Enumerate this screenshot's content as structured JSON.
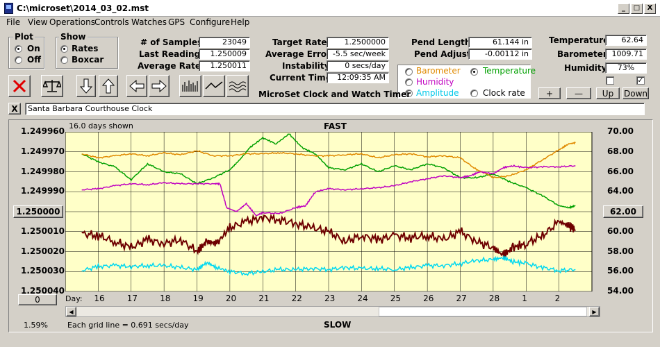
{
  "window": {
    "title": "C:\\microset\\2014_03_02.mst",
    "min_label": "_",
    "max_label": "□",
    "close_label": "X"
  },
  "menu": [
    "File",
    "View",
    "Operations",
    "Controls",
    "Watches",
    "GPS",
    "Configure",
    "Help"
  ],
  "plot_group": {
    "title": "Plot",
    "on": "On",
    "off": "Off",
    "selected": "On"
  },
  "show_group": {
    "title": "Show",
    "rates": "Rates",
    "boxcar": "Boxcar",
    "selected": "Rates"
  },
  "stats": {
    "samples_label": "# of Samples:",
    "samples": "23049",
    "last_reading_label": "Last Reading:",
    "last_reading": "1.250009",
    "avg_rate_label": "Average Rate:",
    "avg_rate": "1.250011",
    "target_rate_label": "Target Rate:",
    "target_rate": "1.2500000",
    "avg_error_label": "Average Error:",
    "avg_error": "-5.5 sec/week",
    "instability_label": "Instability:",
    "instability": "0 secs/day",
    "current_time_label": "Current Time:",
    "current_time": "12:09:35 AM",
    "pend_length_label": "Pend Length:",
    "pend_length": "61.144 in",
    "pend_adjust_label": "Pend Adjust:",
    "pend_adjust": "-0.00112 in",
    "temperature_label": "Temperature:",
    "temperature": "62.64",
    "barometer_label": "Barometer:",
    "barometer": "1009.71",
    "humidity_label": "Humidity:",
    "humidity": "73%"
  },
  "app_caption": "MicroSet Clock and Watch Timer",
  "sensor_group": {
    "barometer": "Barometer",
    "temperature": "Temperature",
    "humidity": "Humidity",
    "amplitude": "Amplitude",
    "clock_rate": "Clock rate",
    "selected": "Temperature",
    "colors": {
      "barometer": "#e08a00",
      "temperature": "#00a000",
      "humidity": "#c000c0",
      "amplitude": "#00c8e8",
      "clock_rate": "#000000"
    }
  },
  "right_buttons": {
    "plus": "+",
    "minus": "—",
    "up": "Up",
    "down": "Down"
  },
  "checkboxes": {
    "left_checked": false,
    "right_checked": true,
    "check_mark": "✓"
  },
  "clock_bar": {
    "close": "X",
    "name": "Santa Barbara Courthouse Clock"
  },
  "chart_header": {
    "days_shown": "16.0 days shown",
    "fast": "FAST",
    "slow": "SLOW",
    "grid_note": "Each grid line = 0.691 secs/day",
    "percent": "1.59%",
    "day_label": "Day:"
  },
  "left_axis_button": "1.250000",
  "right_axis_button": "62.00",
  "zero_button": "0",
  "chart_data": {
    "type": "line",
    "x_label": "Day:",
    "x_ticks": [
      "16",
      "17",
      "18",
      "19",
      "20",
      "21",
      "22",
      "23",
      "24",
      "25",
      "26",
      "27",
      "28",
      "1",
      "2"
    ],
    "y_left_ticks": [
      "1.249960",
      "1.249970",
      "1.249980",
      "1.249990",
      "1.250000",
      "1.250010",
      "1.250020",
      "1.250030",
      "1.250040"
    ],
    "y_left_range": [
      1.24996,
      1.25004
    ],
    "y_right_ticks": [
      "70.00",
      "68.00",
      "66.00",
      "64.00",
      "62.00",
      "60.00",
      "58.00",
      "56.00",
      "54.00"
    ],
    "y_right_range": [
      54,
      70
    ],
    "background": "#ffffc8",
    "series": [
      {
        "name": "Temperature",
        "color": "#00a000",
        "axis": "right",
        "x": [
          15.5,
          16.0,
          16.5,
          17.0,
          17.5,
          18.0,
          18.5,
          19.0,
          19.5,
          20.0,
          20.3,
          20.6,
          21.0,
          21.4,
          21.8,
          22.2,
          22.6,
          23.0,
          23.5,
          24.0,
          24.5,
          25.0,
          25.5,
          26.0,
          26.5,
          27.0,
          27.5,
          28.0,
          28.5,
          29.0,
          29.5,
          30.0,
          30.3,
          30.5
        ],
        "y": [
          67.8,
          67.0,
          66.5,
          65.2,
          66.8,
          66.0,
          65.8,
          64.8,
          65.4,
          66.2,
          67.2,
          68.4,
          69.4,
          68.8,
          69.8,
          68.4,
          67.8,
          66.4,
          66.2,
          66.8,
          66.0,
          66.6,
          66.2,
          66.8,
          66.4,
          65.4,
          65.4,
          65.8,
          65.0,
          64.4,
          63.6,
          62.6,
          62.4,
          62.6
        ]
      },
      {
        "name": "Barometer",
        "color": "#e08a00",
        "axis": "right",
        "x": [
          15.5,
          16.0,
          16.5,
          17.0,
          17.5,
          18.0,
          18.5,
          19.0,
          19.5,
          20.0,
          20.5,
          21.0,
          21.5,
          22.0,
          22.5,
          23.0,
          23.5,
          24.0,
          24.5,
          25.0,
          25.5,
          26.0,
          26.5,
          27.0,
          27.5,
          27.8,
          28.0,
          28.5,
          29.0,
          29.5,
          30.0,
          30.3,
          30.5
        ],
        "y": [
          67.8,
          67.4,
          67.6,
          67.8,
          67.6,
          67.9,
          67.7,
          68.1,
          67.6,
          67.6,
          67.8,
          67.8,
          67.9,
          67.8,
          67.6,
          67.6,
          67.7,
          67.8,
          67.4,
          67.7,
          67.8,
          67.5,
          67.6,
          67.4,
          66.2,
          65.8,
          65.4,
          65.6,
          66.2,
          67.2,
          68.2,
          68.8,
          68.9
        ]
      },
      {
        "name": "Humidity",
        "color": "#c000c0",
        "axis": "right",
        "x": [
          15.5,
          16.0,
          16.5,
          17.0,
          17.5,
          18.0,
          18.5,
          19.0,
          19.5,
          19.7,
          19.9,
          20.2,
          20.5,
          20.8,
          21.0,
          21.5,
          22.0,
          22.3,
          22.6,
          23.0,
          23.5,
          24.0,
          24.5,
          25.0,
          25.5,
          26.0,
          26.5,
          27.0,
          27.3,
          27.6,
          28.0,
          28.3,
          28.6,
          29.0,
          29.5,
          30.0,
          30.5
        ],
        "y": [
          64.2,
          64.3,
          64.6,
          64.8,
          64.7,
          64.9,
          64.8,
          64.8,
          64.8,
          64.8,
          62.4,
          62.0,
          62.8,
          61.6,
          61.9,
          61.8,
          62.4,
          62.6,
          64.0,
          64.3,
          64.2,
          64.3,
          64.4,
          64.6,
          65.0,
          65.3,
          65.6,
          65.4,
          65.6,
          66.0,
          65.8,
          66.4,
          66.6,
          66.4,
          66.5,
          66.5,
          66.6
        ]
      },
      {
        "name": "Clock rate",
        "color": "#6e0000",
        "axis": "left",
        "x": [
          15.5,
          16.0,
          16.5,
          17.0,
          17.5,
          18.0,
          18.5,
          19.0,
          19.3,
          19.6,
          20.0,
          20.5,
          21.0,
          21.5,
          22.0,
          22.5,
          23.0,
          23.5,
          24.0,
          24.5,
          25.0,
          25.5,
          26.0,
          26.5,
          27.0,
          27.5,
          28.0,
          28.3,
          28.6,
          29.0,
          29.5,
          30.0,
          30.3,
          30.5
        ],
        "y": [
          1.250011,
          1.250012,
          1.250015,
          1.250018,
          1.250014,
          1.250016,
          1.250014,
          1.25002,
          1.250015,
          1.250016,
          1.250008,
          1.250005,
          1.250003,
          1.250004,
          1.250006,
          1.250008,
          1.25001,
          1.250015,
          1.250012,
          1.250014,
          1.250012,
          1.250013,
          1.250012,
          1.250014,
          1.25001,
          1.250015,
          1.250018,
          1.250022,
          1.250018,
          1.250016,
          1.250012,
          1.250005,
          1.250007,
          1.250009
        ]
      },
      {
        "name": "Amplitude",
        "color": "#00d8f0",
        "axis": "right",
        "x": [
          15.5,
          16.0,
          16.5,
          17.0,
          17.5,
          18.0,
          18.5,
          19.0,
          19.3,
          19.6,
          20.0,
          20.5,
          21.0,
          21.5,
          22.0,
          22.5,
          23.0,
          23.5,
          24.0,
          24.5,
          25.0,
          25.5,
          26.0,
          26.5,
          27.0,
          27.5,
          28.0,
          28.3,
          28.6,
          29.0,
          29.5,
          30.0,
          30.5
        ],
        "y": [
          56.1,
          56.5,
          56.6,
          56.5,
          56.6,
          56.6,
          56.4,
          56.2,
          56.9,
          56.4,
          56.0,
          55.8,
          56.0,
          56.2,
          56.2,
          56.3,
          56.2,
          56.4,
          56.3,
          56.3,
          56.2,
          56.4,
          56.6,
          56.6,
          56.8,
          57.1,
          57.2,
          57.4,
          57.0,
          56.8,
          56.4,
          56.1,
          56.2
        ]
      }
    ]
  }
}
